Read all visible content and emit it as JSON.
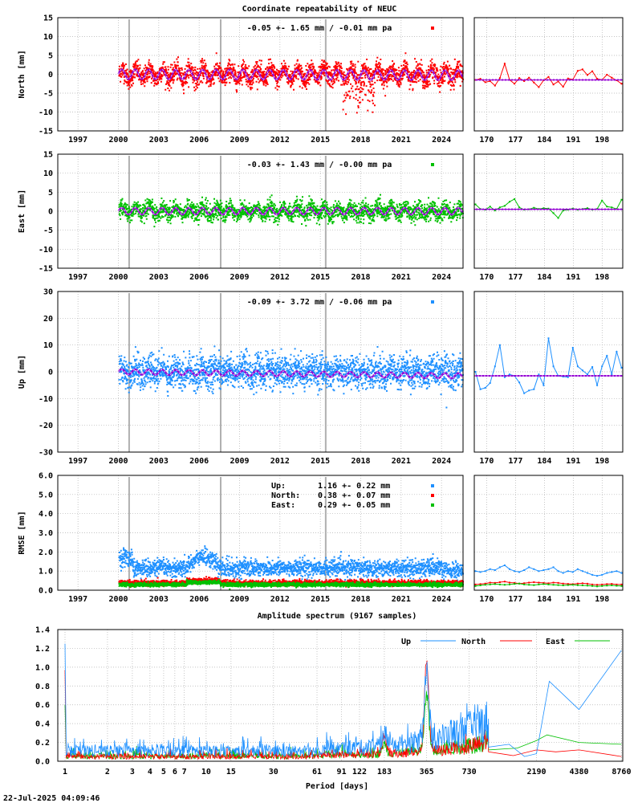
{
  "title": "Coordinate repeatability of NEUC",
  "footer_timestamp": "22-Jul-2025 04:09:46",
  "colors": {
    "north": "#ff0000",
    "east": "#00c000",
    "up": "#1e90ff",
    "model": "#9400d3",
    "event_lines": "#b0b0b0"
  },
  "time_axis": {
    "tick_labels": [
      "1997",
      "2000",
      "2003",
      "2006",
      "2009",
      "2012",
      "2015",
      "2018",
      "2021",
      "2024"
    ],
    "range": [
      1995.5,
      2025.6
    ],
    "event_epochs": [
      2000.8,
      2007.6,
      2015.4
    ]
  },
  "zoom_axis": {
    "tick_labels": [
      "170",
      "177",
      "184",
      "191",
      "198"
    ],
    "range": [
      167,
      203
    ]
  },
  "chart_data": [
    {
      "type": "scatter",
      "name": "north",
      "ylabel": "North [mm]",
      "ylim": [
        -15,
        15
      ],
      "yticks": [
        "15",
        "10",
        "5",
        "0",
        "-5",
        "-10",
        "-15"
      ],
      "stats": "-0.05 +- 1.65 mm / -0.01 mm pa",
      "data_span": [
        2000.0,
        2025.55
      ],
      "scatter_sigma": 1.65,
      "seasonal_amplitude": 1.3,
      "trend_mm_per_year": -0.01,
      "zoom_line_values": [
        -1.5,
        -1.2,
        -2.1,
        -1.8,
        -3.0,
        -1.0,
        2.8,
        -1.5,
        -2.5,
        -1.0,
        -1.8,
        -0.9,
        -2.2,
        -3.4,
        -1.6,
        -0.7,
        -2.7,
        -1.9,
        -3.3,
        -1.1,
        -1.4,
        0.9,
        1.3,
        -0.2,
        0.8,
        -1.2,
        -1.5,
        -0.1,
        -0.9,
        -1.6,
        -2.5
      ]
    },
    {
      "type": "scatter",
      "name": "east",
      "ylabel": "East [mm]",
      "ylim": [
        -15,
        15
      ],
      "yticks": [
        "15",
        "10",
        "5",
        "0",
        "-5",
        "-10",
        "-15"
      ],
      "stats": "-0.03 +- 1.43 mm / -0.00 mm pa",
      "data_span": [
        2000.0,
        2025.55
      ],
      "scatter_sigma": 1.43,
      "seasonal_amplitude": 0.9,
      "trend_mm_per_year": 0.0,
      "zoom_line_values": [
        1.8,
        0.6,
        0.4,
        1.2,
        0.2,
        1.0,
        1.4,
        2.5,
        3.2,
        1.0,
        0.4,
        0.5,
        0.9,
        0.6,
        0.8,
        0.7,
        -0.5,
        -1.8,
        0.2,
        0.4,
        0.7,
        0.4,
        0.6,
        0.8,
        0.4,
        0.6,
        2.8,
        1.2,
        1.0,
        0.6,
        3.0
      ]
    },
    {
      "type": "scatter",
      "name": "up",
      "ylabel": "Up [mm]",
      "ylim": [
        -30,
        30
      ],
      "yticks": [
        "30",
        "20",
        "10",
        "0",
        "-10",
        "-20",
        "-30"
      ],
      "stats": "-0.09 +- 3.72 mm / -0.06 mm pa",
      "data_span": [
        2000.0,
        2025.55
      ],
      "scatter_sigma": 3.72,
      "seasonal_amplitude": 1.0,
      "trend_mm_per_year": -0.06,
      "zoom_line_values": [
        0.0,
        -6.5,
        -6.0,
        -4.2,
        2.0,
        10.0,
        -2.0,
        -1.0,
        -1.5,
        -4.0,
        -8.0,
        -7.0,
        -6.5,
        -1.0,
        -5.0,
        12.5,
        2.0,
        -1.5,
        -1.8,
        -2.0,
        9.0,
        2.0,
        0.5,
        -1.0,
        1.8,
        -5.0,
        2.0,
        6.0,
        -1.0,
        7.5,
        1.5
      ]
    },
    {
      "type": "scatter",
      "name": "rmse",
      "ylabel": "RMSE [mm]",
      "ylim": [
        0,
        6
      ],
      "yticks": [
        "6.0",
        "5.0",
        "4.0",
        "3.0",
        "2.0",
        "1.0",
        "0.0"
      ],
      "legend": [
        {
          "label": "Up:",
          "text": "1.16 +- 0.22 mm",
          "color_key": "up"
        },
        {
          "label": "North:",
          "text": "0.38 +- 0.07 mm",
          "color_key": "north"
        },
        {
          "label": "East:",
          "text": "0.29 +- 0.05 mm",
          "color_key": "east"
        }
      ],
      "means": {
        "up": 1.16,
        "north": 0.38,
        "east": 0.29
      },
      "zoom_up_values": [
        1.0,
        0.95,
        1.0,
        1.1,
        1.05,
        1.2,
        1.3,
        1.1,
        1.0,
        0.95,
        1.05,
        1.2,
        1.1,
        1.0,
        1.05,
        1.1,
        1.2,
        1.0,
        0.9,
        1.0,
        0.95,
        1.1,
        1.0,
        0.9,
        0.8,
        0.75,
        0.8,
        0.9,
        0.95,
        1.0,
        0.9
      ],
      "zoom_north_values": [
        0.3,
        0.32,
        0.35,
        0.4,
        0.38,
        0.42,
        0.45,
        0.4,
        0.38,
        0.35,
        0.37,
        0.4,
        0.42,
        0.4,
        0.38,
        0.36,
        0.4,
        0.38,
        0.35,
        0.33,
        0.32,
        0.35,
        0.36,
        0.34,
        0.3,
        0.28,
        0.3,
        0.32,
        0.33,
        0.3,
        0.3
      ],
      "zoom_east_values": [
        0.22,
        0.25,
        0.28,
        0.3,
        0.32,
        0.3,
        0.28,
        0.3,
        0.33,
        0.35,
        0.3,
        0.28,
        0.27,
        0.3,
        0.32,
        0.3,
        0.28,
        0.27,
        0.25,
        0.27,
        0.28,
        0.26,
        0.25,
        0.24,
        0.22,
        0.2,
        0.22,
        0.24,
        0.25,
        0.23,
        0.22
      ]
    },
    {
      "type": "line",
      "name": "spectrum",
      "title": "Amplitude spectrum (9167 samples)",
      "xlabel": "Period [days]",
      "xscale": "log",
      "xlim": [
        1,
        8760
      ],
      "ylim": [
        0,
        1.4
      ],
      "yticks": [
        "1.4",
        "1.2",
        "1.0",
        "0.8",
        "0.6",
        "0.4",
        "0.2",
        "0.0"
      ],
      "xticks": [
        {
          "v": 1,
          "label": "1"
        },
        {
          "v": 2,
          "label": "2"
        },
        {
          "v": 3,
          "label": "3"
        },
        {
          "v": 4,
          "label": "4"
        },
        {
          "v": 5,
          "label": "5"
        },
        {
          "v": 6,
          "label": "6"
        },
        {
          "v": 7,
          "label": "7"
        },
        {
          "v": 10,
          "label": "10"
        },
        {
          "v": 15,
          "label": "15"
        },
        {
          "v": 30,
          "label": "30"
        },
        {
          "v": 61,
          "label": "61"
        },
        {
          "v": 91,
          "label": "91"
        },
        {
          "v": 122,
          "label": "122"
        },
        {
          "v": 183,
          "label": "183"
        },
        {
          "v": 365,
          "label": "365"
        },
        {
          "v": 730,
          "label": "730"
        },
        {
          "v": 2190,
          "label": "2190"
        },
        {
          "v": 4380,
          "label": "4380"
        },
        {
          "v": 8760,
          "label": "8760"
        }
      ],
      "legend": [
        "Up",
        "North",
        "East"
      ],
      "peaks": {
        "north": [
          {
            "x": 1,
            "y": 0.97
          },
          {
            "x": 365,
            "y": 0.97
          }
        ],
        "east": [
          {
            "x": 1,
            "y": 0.6
          },
          {
            "x": 365,
            "y": 0.58
          }
        ],
        "up": [
          {
            "x": 1,
            "y": 1.25
          },
          {
            "x": 365,
            "y": 0.72
          }
        ]
      },
      "up_long_period": [
        [
          1000,
          0.15
        ],
        [
          1400,
          0.18
        ],
        [
          1800,
          0.05
        ],
        [
          2190,
          0.08
        ],
        [
          2700,
          0.85
        ],
        [
          4380,
          0.55
        ],
        [
          8760,
          1.18
        ]
      ],
      "north_long_period": [
        [
          1000,
          0.1
        ],
        [
          1500,
          0.06
        ],
        [
          2190,
          0.12
        ],
        [
          3000,
          0.1
        ],
        [
          4380,
          0.12
        ],
        [
          8760,
          0.05
        ]
      ],
      "east_long_period": [
        [
          1000,
          0.12
        ],
        [
          1600,
          0.14
        ],
        [
          2190,
          0.22
        ],
        [
          2600,
          0.28
        ],
        [
          4380,
          0.2
        ],
        [
          8760,
          0.18
        ]
      ]
    }
  ]
}
